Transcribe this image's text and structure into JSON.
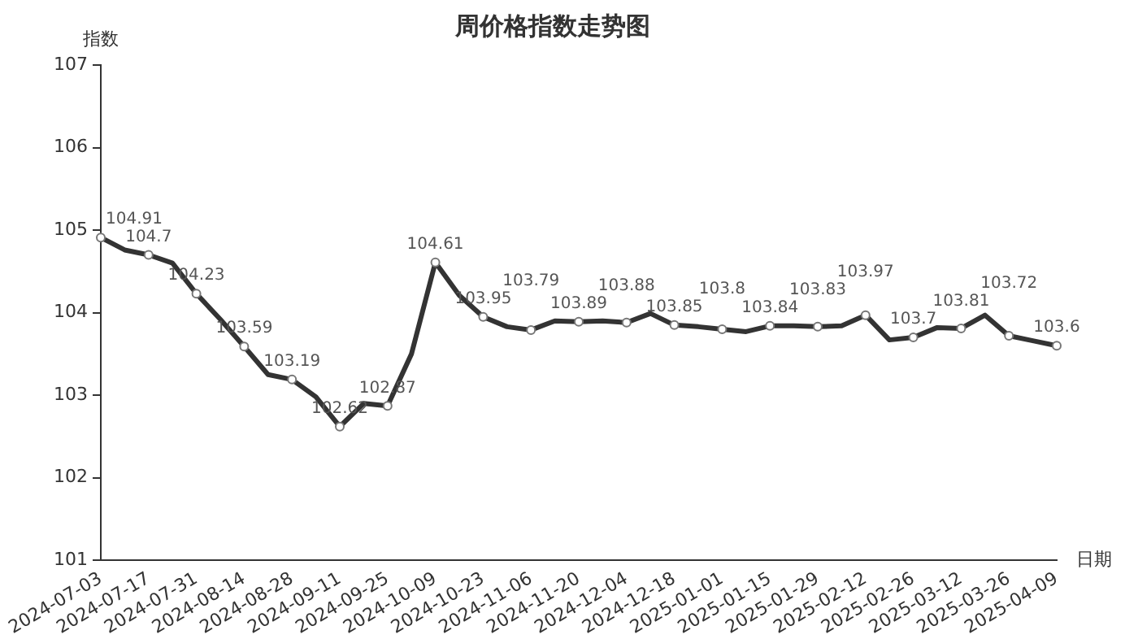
{
  "chart_data": {
    "type": "line",
    "title": "周价格指数走势图",
    "xlabel": "日期",
    "ylabel": "指数",
    "categories": [
      "2024-07-03",
      null,
      "2024-07-17",
      null,
      "2024-07-31",
      null,
      "2024-08-14",
      null,
      "2024-08-28",
      null,
      "2024-09-11",
      null,
      "2024-09-25",
      null,
      "2024-10-09",
      null,
      "2024-10-23",
      null,
      "2024-11-06",
      null,
      "2024-11-20",
      null,
      "2024-12-04",
      null,
      "2024-12-18",
      null,
      "2025-01-01",
      null,
      "2025-01-15",
      null,
      "2025-01-29",
      null,
      "2025-02-12",
      null,
      "2025-02-26",
      null,
      "2025-03-12",
      null,
      "2025-03-26",
      null,
      "2025-04-09"
    ],
    "series": [
      {
        "color": "#333333",
        "values": [
          104.91,
          104.76,
          104.7,
          104.6,
          104.23,
          103.92,
          103.59,
          103.25,
          103.19,
          102.98,
          102.62,
          102.9,
          102.87,
          103.5,
          104.61,
          104.21,
          103.95,
          103.83,
          103.79,
          103.9,
          103.89,
          103.9,
          103.88,
          103.99,
          103.85,
          103.83,
          103.8,
          103.77,
          103.84,
          103.84,
          103.83,
          103.84,
          103.97,
          103.67,
          103.7,
          103.82,
          103.81,
          103.97,
          103.72,
          103.66,
          103.6
        ],
        "value_labels": [
          "104.91",
          null,
          "104.7",
          null,
          "104.23",
          null,
          "103.59",
          null,
          "103.19",
          null,
          "102.62",
          null,
          "102.87",
          null,
          "104.61",
          null,
          "103.95",
          null,
          "103.79",
          null,
          "103.89",
          null,
          "103.88",
          null,
          "103.85",
          null,
          "103.8",
          null,
          "103.84",
          null,
          "103.83",
          null,
          "103.97",
          null,
          "103.7",
          null,
          "103.81",
          null,
          "103.72",
          null,
          "103.6"
        ]
      }
    ],
    "ylim": [
      101,
      107
    ],
    "yticks": [
      101,
      102,
      103,
      104,
      105,
      106,
      107
    ],
    "grid": false,
    "legend": false,
    "marker": "circle",
    "line_style": "solid"
  }
}
